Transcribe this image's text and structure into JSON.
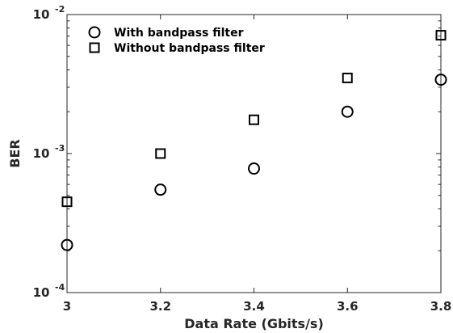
{
  "chart_data": {
    "type": "scatter",
    "xlabel": "Data Rate (Gbits/s)",
    "ylabel": "BER",
    "xlim": [
      3.0,
      3.8
    ],
    "ylim": [
      0.0001,
      0.01
    ],
    "yscale": "log",
    "x_ticks": [
      "3",
      "3.2",
      "3.4",
      "3.6",
      "3.8"
    ],
    "y_ticks": [
      {
        "value": 0.01,
        "base": "10",
        "exp": "-2"
      },
      {
        "value": 0.001,
        "base": "10",
        "exp": "-3"
      },
      {
        "value": 0.0001,
        "base": "10",
        "exp": "-4"
      }
    ],
    "grid": false,
    "legend_position": "top-left",
    "series": [
      {
        "name": "With bandpass filter",
        "marker": "circle",
        "color": "#000000",
        "x": [
          3.0,
          3.2,
          3.4,
          3.6,
          3.8
        ],
        "y": [
          0.00022,
          0.00055,
          0.00078,
          0.002,
          0.0034
        ]
      },
      {
        "name": "Without bandpass filter",
        "marker": "square",
        "color": "#000000",
        "x": [
          3.0,
          3.2,
          3.4,
          3.6,
          3.8
        ],
        "y": [
          0.00045,
          0.001,
          0.00175,
          0.0035,
          0.0071
        ]
      }
    ]
  }
}
